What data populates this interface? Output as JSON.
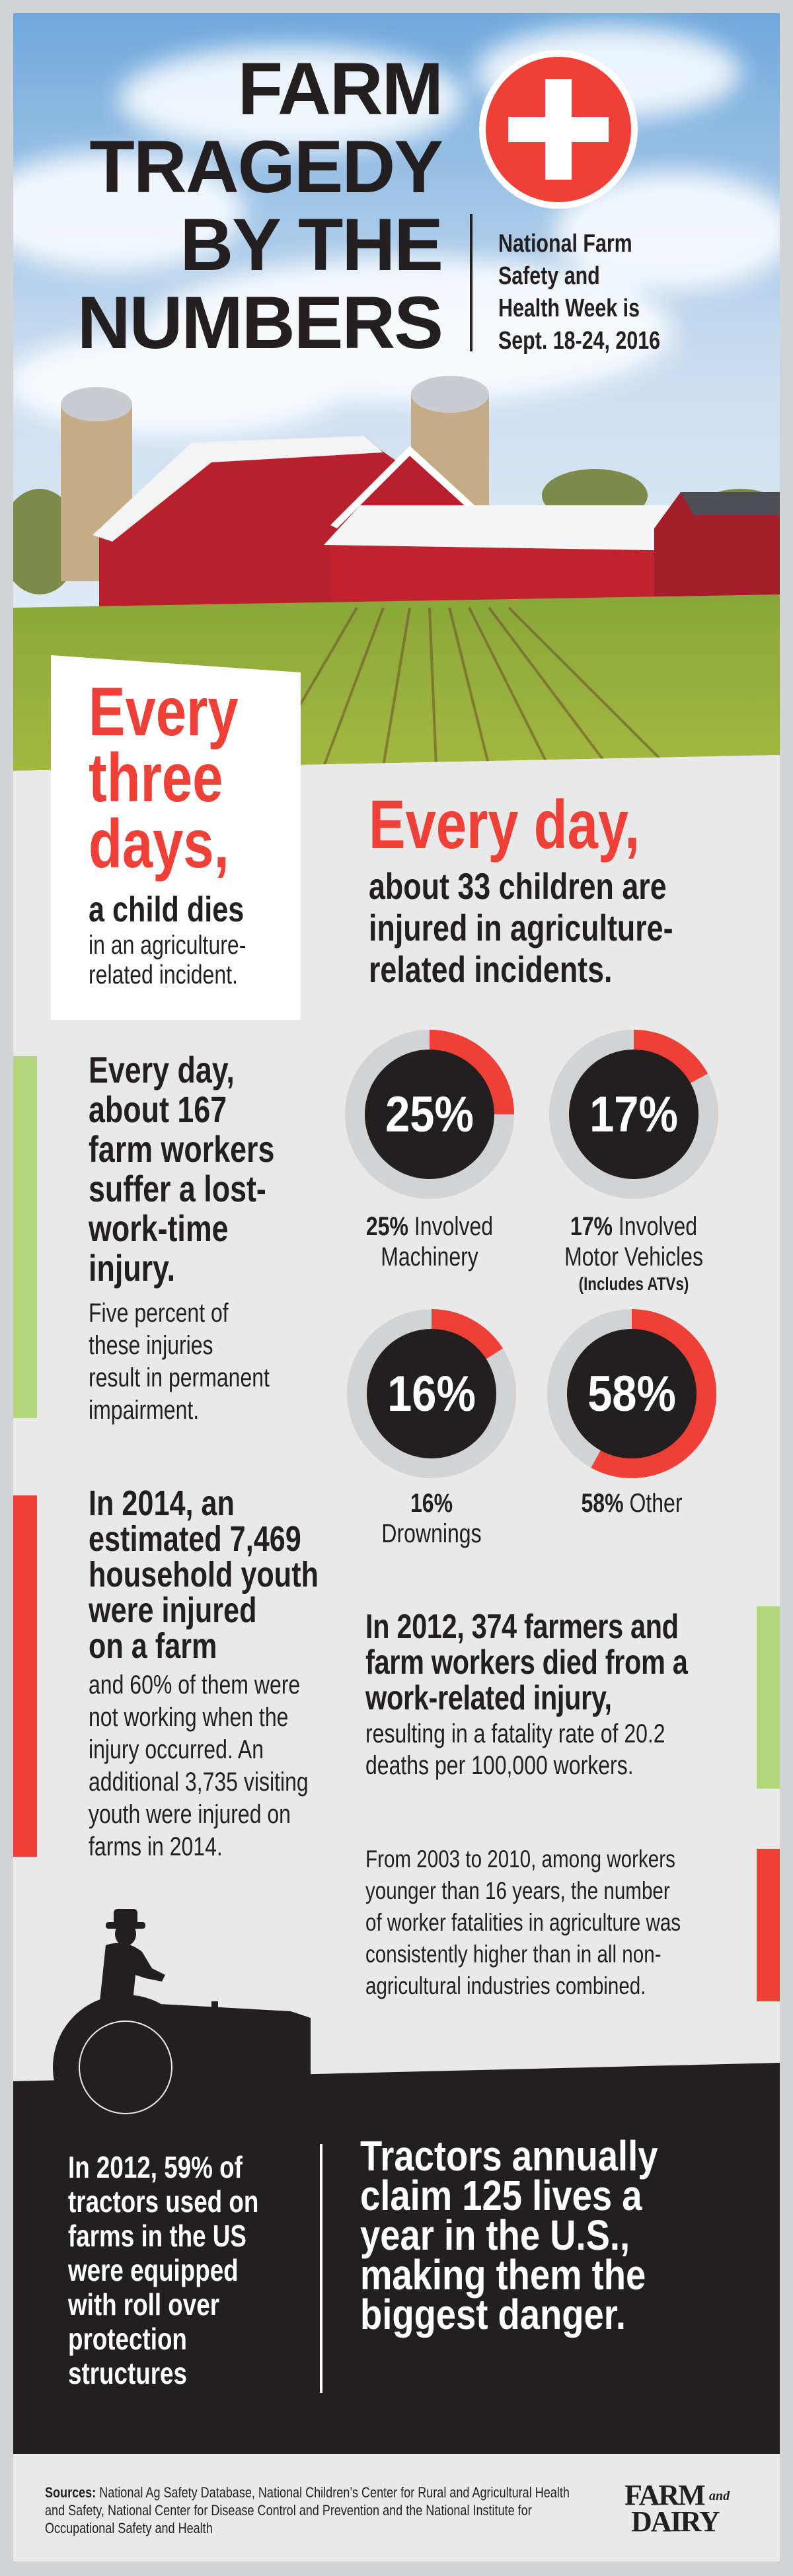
{
  "colors": {
    "accent_red": "#ee4036",
    "accent_green": "#b2d77a",
    "dark": "#231f20",
    "ring_gray": "#d1d3d4",
    "background": "#e9e9e9"
  },
  "header": {
    "title_lines": [
      "FARM",
      "TRAGEDY",
      "BY THE",
      "NUMBERS"
    ],
    "icon": "red-cross-icon",
    "subtitle_lines": [
      "National Farm",
      "Safety and",
      "Health Week is",
      "Sept. 18-24, 2016"
    ]
  },
  "stat_child_deaths": {
    "headline_lines": [
      "Every",
      "three",
      "days,"
    ],
    "bold": "a child dies",
    "detail_lines": [
      "in an agriculture-",
      "related incident."
    ]
  },
  "stat_child_injuries": {
    "headline": "Every day,",
    "detail_lines": [
      "about 33 children are",
      "injured in agriculture-",
      "related incidents."
    ]
  },
  "stat_worker_injuries": {
    "headline_lines": [
      "Every day,",
      "about 167",
      "farm workers",
      "suffer a lost-",
      "work-time",
      "injury."
    ],
    "detail_lines": [
      "Five percent of",
      "these injuries",
      "result in permanent",
      "impairment."
    ]
  },
  "chart_data": {
    "type": "donut",
    "items": [
      {
        "value": 25,
        "center_label": "25%",
        "label_bold": "25%",
        "label_rest": "Involved",
        "label_line2": "Machinery",
        "note": ""
      },
      {
        "value": 17,
        "center_label": "17%",
        "label_bold": "17%",
        "label_rest": "Involved",
        "label_line2": "Motor Vehicles",
        "note": "(Includes ATVs)"
      },
      {
        "value": 16,
        "center_label": "16%",
        "label_bold": "16%",
        "label_rest": "",
        "label_line2": "Drownings",
        "note": ""
      },
      {
        "value": 58,
        "center_label": "58%",
        "label_bold": "58%",
        "label_rest": "Other",
        "label_line2": "",
        "note": ""
      }
    ]
  },
  "stat_youth": {
    "headline_lines": [
      "In 2014, an",
      "estimated 7,469",
      "household youth",
      "were injured",
      "on a farm"
    ],
    "detail_lines": [
      "and 60% of them were",
      "not working when the",
      "injury occurred. An",
      "additional 3,735 visiting",
      "youth were injured on",
      "farms in 2014."
    ]
  },
  "stat_fatalities": {
    "headline_lines": [
      "In 2012, 374 farmers and",
      "farm workers died from a",
      "work-related injury,"
    ],
    "detail_lines": [
      "resulting in a fatality rate of 20.2",
      "deaths per 100,000 workers."
    ]
  },
  "stat_young_workers": {
    "lines": [
      "From 2003 to 2010, among workers",
      "younger than 16 years, the number",
      "of worker fatalities in agriculture was",
      "consistently higher than in all non-",
      "agricultural industries combined."
    ]
  },
  "tractor_section": {
    "left_lines": [
      "In 2012, 59% of",
      "tractors used on",
      "farms in the US",
      "were equipped",
      "with roll over",
      "protection",
      "structures"
    ],
    "right_lines": [
      "Tractors annually",
      "claim 125 lives a",
      "year in the U.S.,",
      "making them the",
      "biggest danger."
    ]
  },
  "footer": {
    "sources_label": "Sources:",
    "sources_text": " National Ag Safety Database, National Children’s Center for Rural and Agricultural Health and Safety, National Center for Disease Control and Prevention and the National Institute for Occupational Safety and Health",
    "logo": {
      "line1": "FARM",
      "small": "and",
      "line2": "DAIRY"
    }
  }
}
